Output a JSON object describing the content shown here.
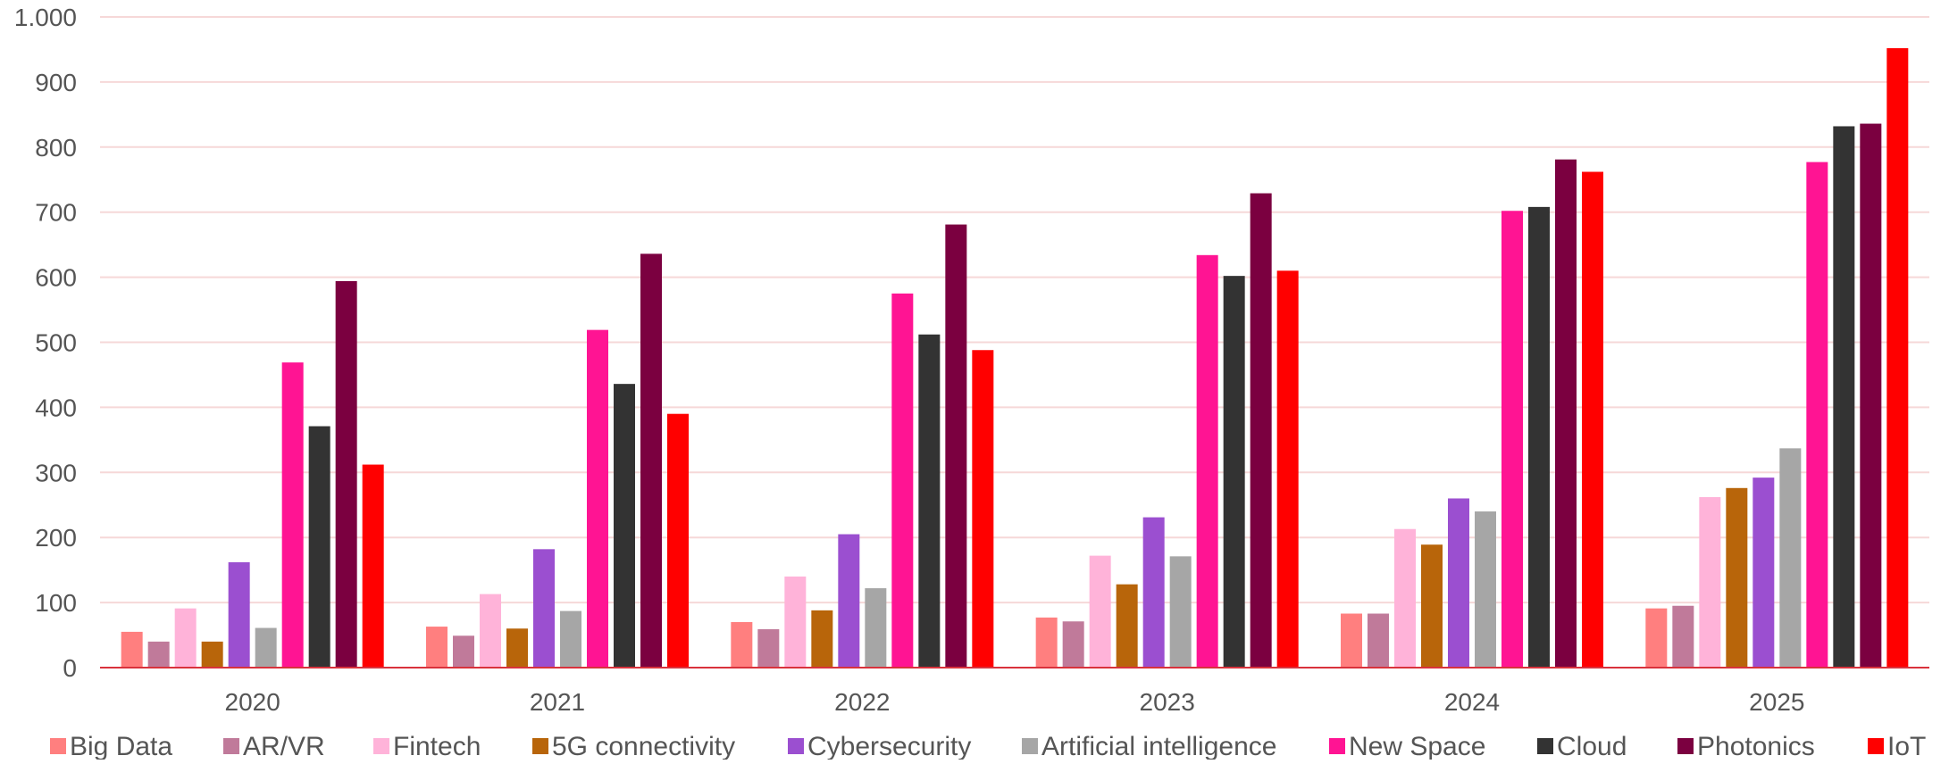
{
  "chart_data": {
    "type": "bar",
    "title": "",
    "xlabel": "",
    "ylabel": "",
    "categories": [
      "2020",
      "2021",
      "2022",
      "2023",
      "2024",
      "2025"
    ],
    "ylim": [
      0,
      1000
    ],
    "yticks": [
      0,
      100,
      200,
      300,
      400,
      500,
      600,
      700,
      800,
      900,
      1000
    ],
    "ytick_labels": [
      "0",
      "100",
      "200",
      "300",
      "400",
      "500",
      "600",
      "700",
      "800",
      "900",
      "1.000"
    ],
    "grid": true,
    "legend_position": "bottom",
    "series": [
      {
        "name": "Big Data",
        "color": "#FF7F7F",
        "values": [
          55,
          63,
          70,
          77,
          83,
          91
        ]
      },
      {
        "name": "AR/VR",
        "color": "#C07A9A",
        "values": [
          40,
          49,
          59,
          71,
          83,
          95
        ]
      },
      {
        "name": "Fintech",
        "color": "#FFB3D9",
        "values": [
          91,
          113,
          140,
          172,
          213,
          262
        ]
      },
      {
        "name": "5G connectivity",
        "color": "#B8650A",
        "values": [
          40,
          60,
          88,
          128,
          189,
          276
        ]
      },
      {
        "name": "Cybersecurity",
        "color": "#9B4FD0",
        "values": [
          162,
          182,
          205,
          231,
          260,
          292
        ]
      },
      {
        "name": "Artificial intelligence",
        "color": "#A6A6A6",
        "values": [
          61,
          87,
          122,
          171,
          240,
          337
        ]
      },
      {
        "name": "New Space",
        "color": "#FF1493",
        "values": [
          469,
          519,
          575,
          634,
          702,
          777
        ]
      },
      {
        "name": "Cloud",
        "color": "#333333",
        "values": [
          371,
          436,
          512,
          602,
          708,
          832
        ]
      },
      {
        "name": "Photonics",
        "color": "#7B0040",
        "values": [
          594,
          636,
          681,
          729,
          781,
          836
        ]
      },
      {
        "name": "IoT",
        "color": "#FF0000",
        "values": [
          312,
          390,
          488,
          610,
          762,
          952
        ]
      }
    ]
  },
  "colors": {
    "gridline": "#F6D8D8",
    "axis_line": "#D9323C",
    "text": "#555555"
  }
}
